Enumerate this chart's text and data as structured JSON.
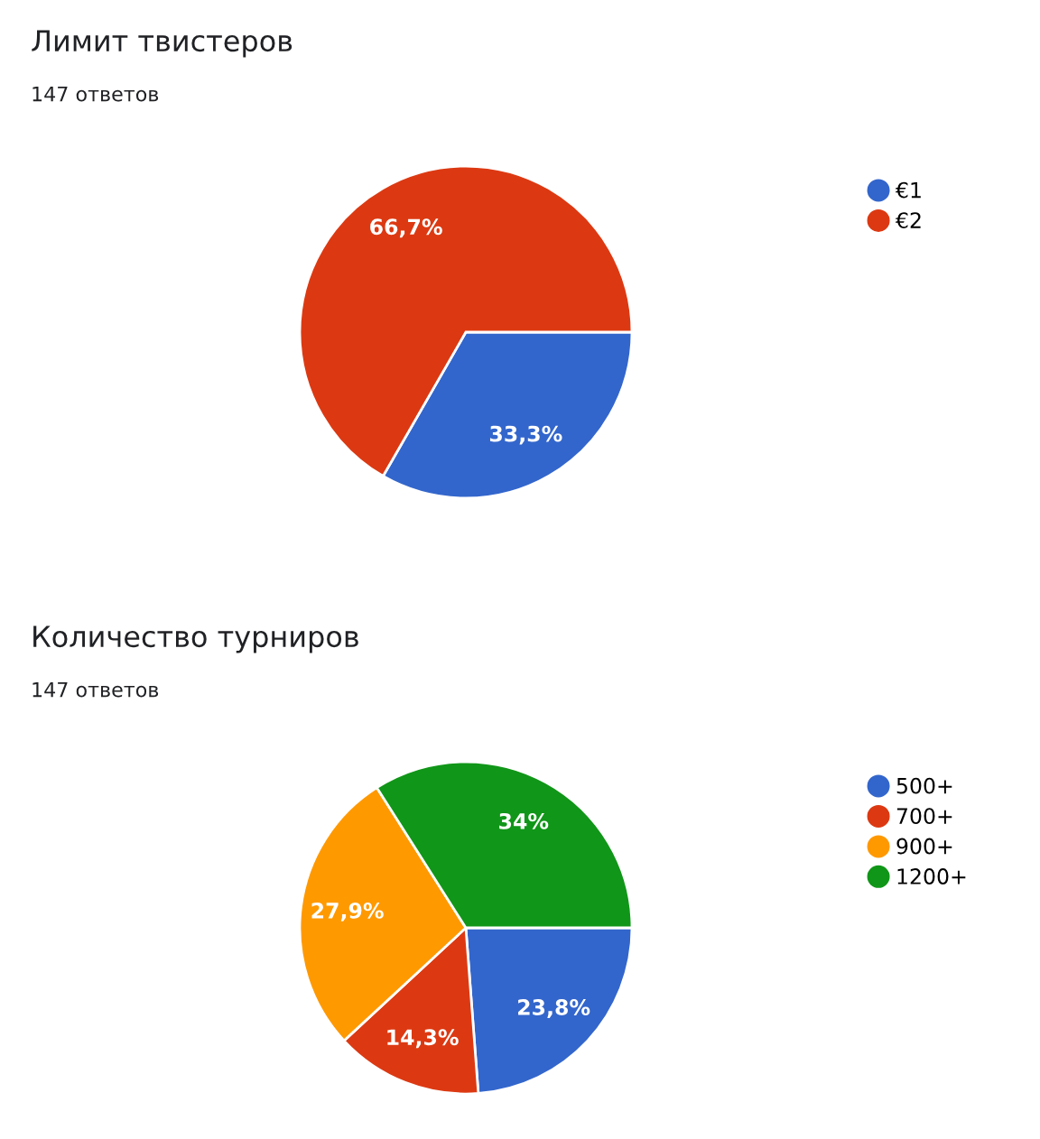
{
  "chart_data": [
    {
      "type": "pie",
      "title": "Лимит твистеров",
      "subtitle": "147 ответов",
      "categories": [
        "€1",
        "€2"
      ],
      "values": [
        33.3,
        66.7
      ],
      "colors": [
        "#3366cc",
        "#dc3912"
      ],
      "value_labels": [
        "33,3%",
        "66,7%"
      ],
      "legend": "right"
    },
    {
      "type": "pie",
      "title": "Количество турниров",
      "subtitle": "147 ответов",
      "categories": [
        "500+",
        "700+",
        "900+",
        "1200+"
      ],
      "values": [
        23.8,
        14.3,
        27.9,
        34
      ],
      "colors": [
        "#3366cc",
        "#dc3912",
        "#ff9900",
        "#109618"
      ],
      "value_labels": [
        "23,8%",
        "14,3%",
        "27,9%",
        "34%"
      ],
      "legend": "right"
    }
  ]
}
